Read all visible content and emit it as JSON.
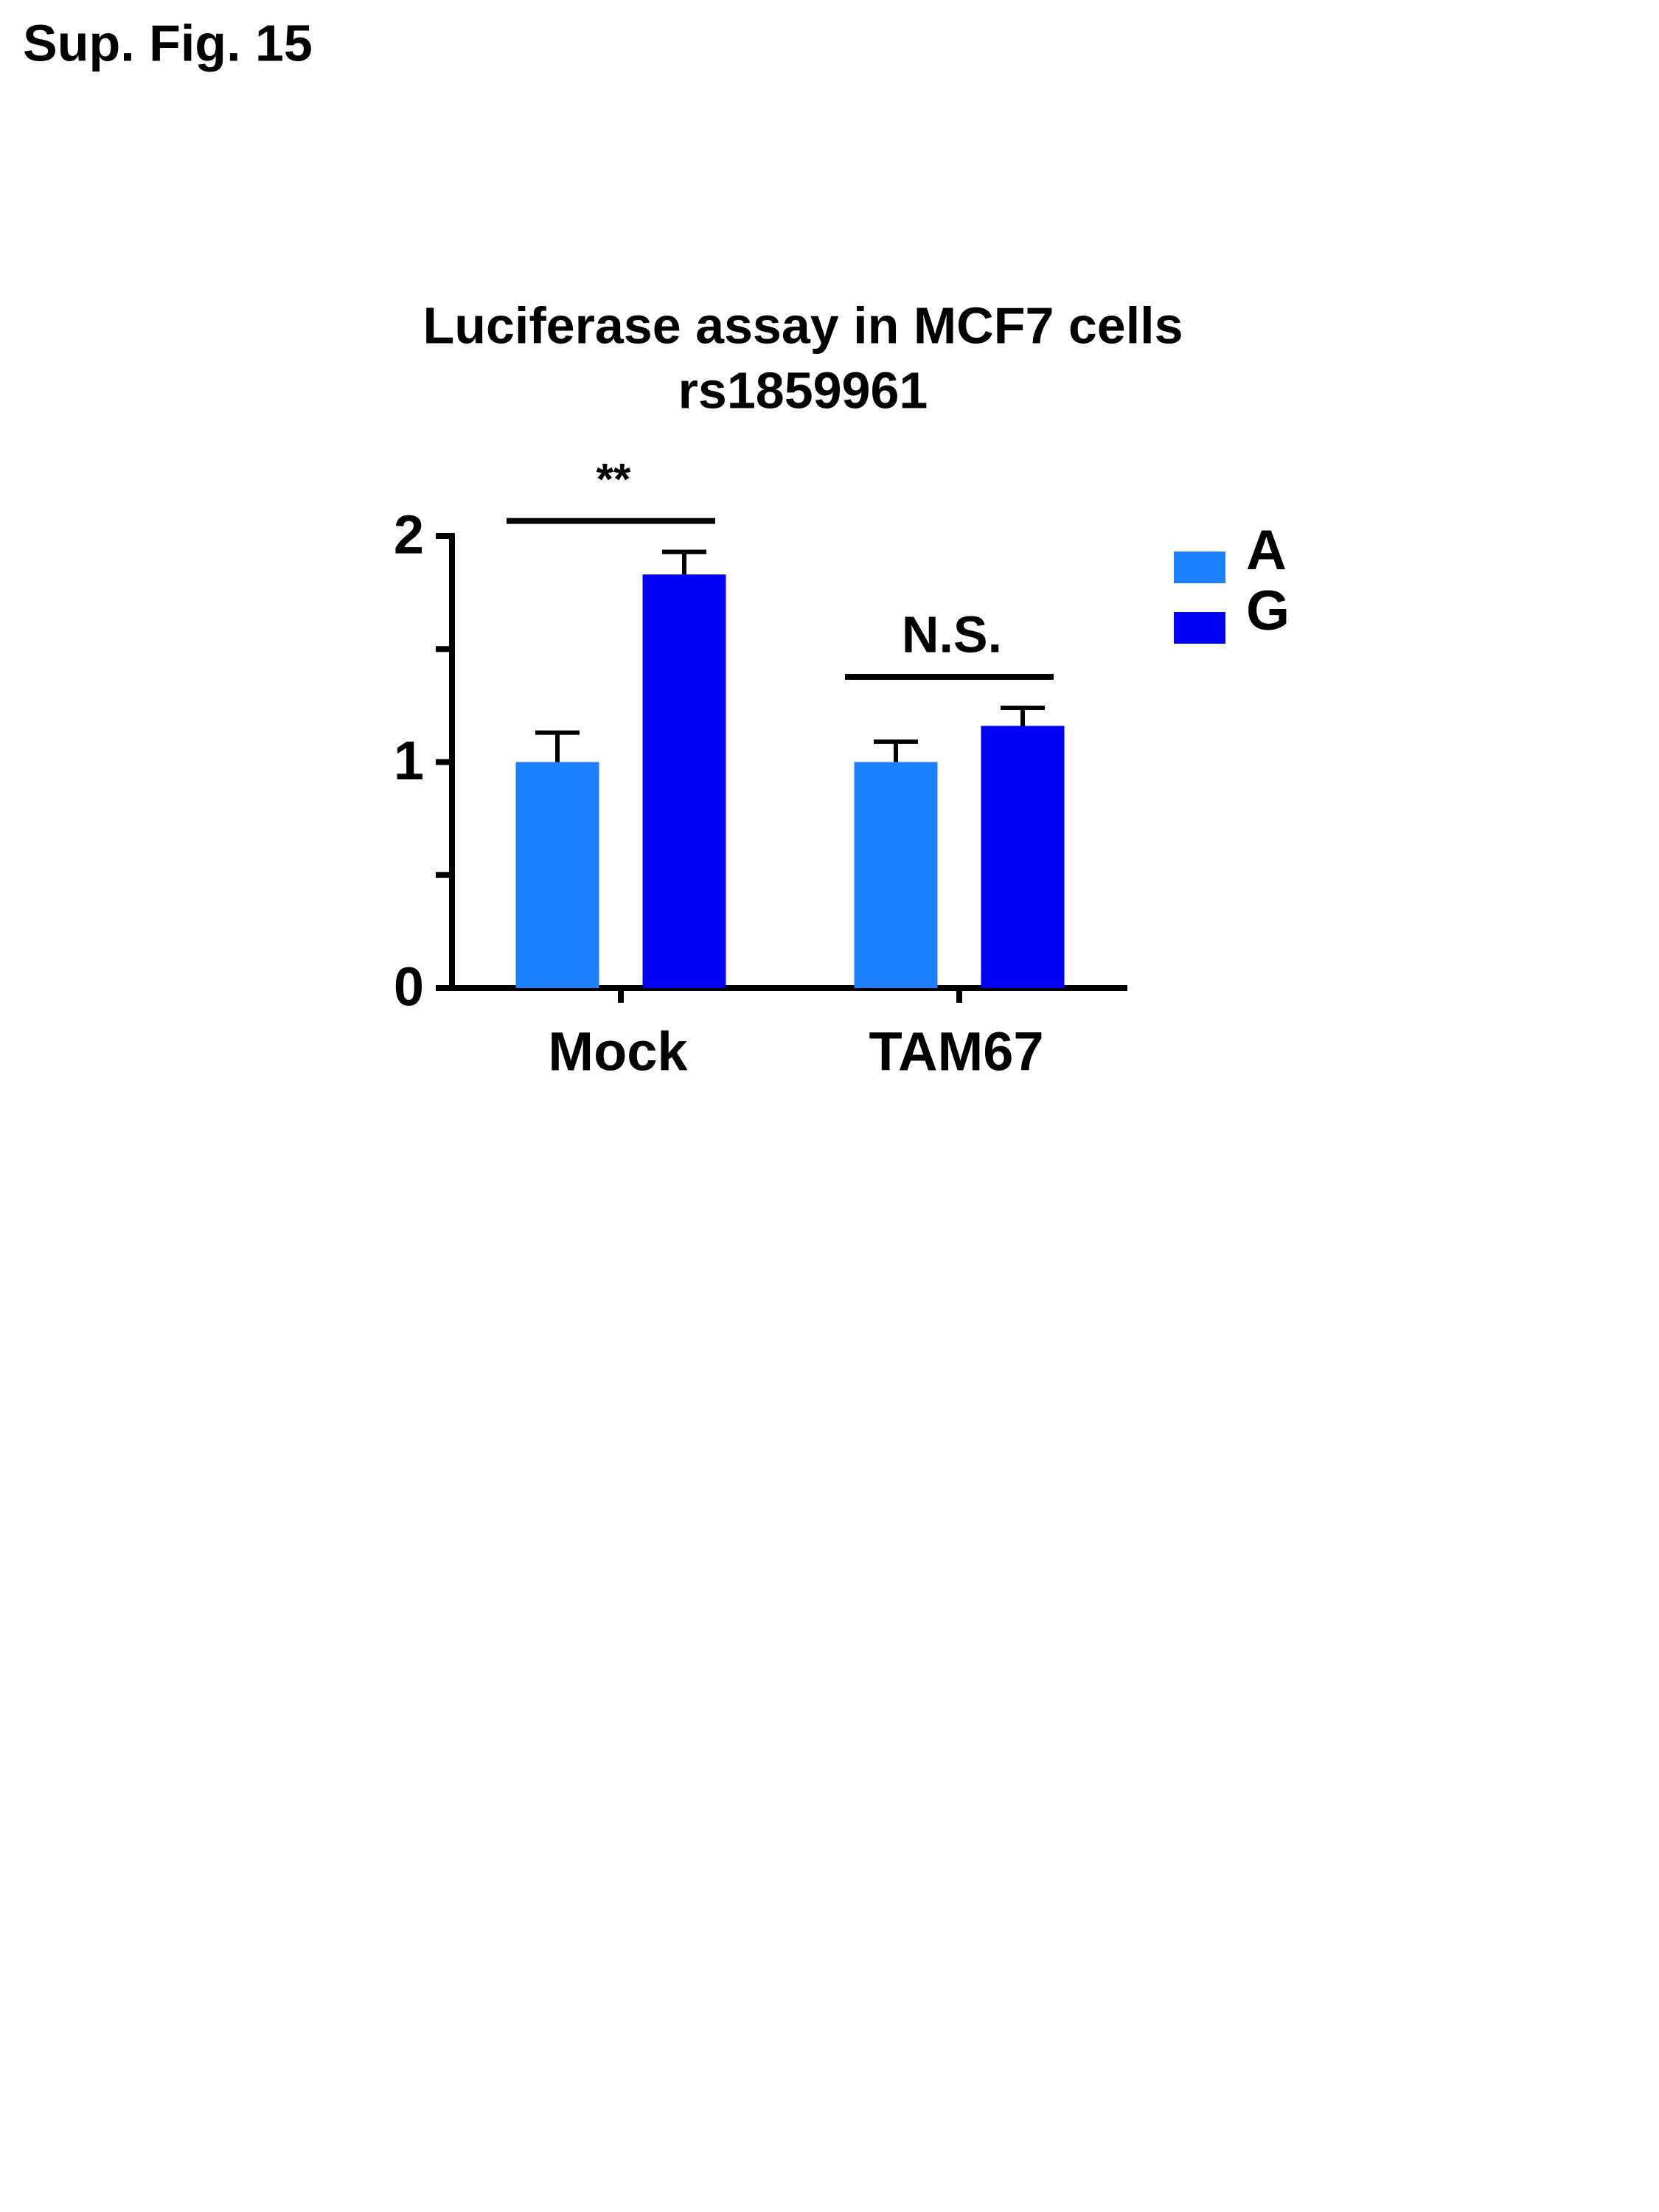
{
  "chart_data": {
    "type": "bar",
    "supertitle": "Sup. Fig. 15",
    "title": "Luciferase assay in MCF7 cells",
    "subtitle": "rs1859961",
    "categories": [
      "Mock",
      "TAM67"
    ],
    "series": [
      {
        "name": "A",
        "color": "#1e80ff",
        "values": [
          1.0,
          1.0
        ],
        "errors": [
          0.13,
          0.09
        ]
      },
      {
        "name": "G",
        "color": "#0000f5",
        "values": [
          1.83,
          1.16
        ],
        "errors": [
          0.1,
          0.08
        ]
      }
    ],
    "annotations": [
      "**",
      "N.S."
    ],
    "ylim": [
      0,
      2
    ],
    "yticks": [
      0,
      1,
      2
    ],
    "minor_yticks": [
      0.5,
      1.5
    ],
    "legend": "right"
  }
}
